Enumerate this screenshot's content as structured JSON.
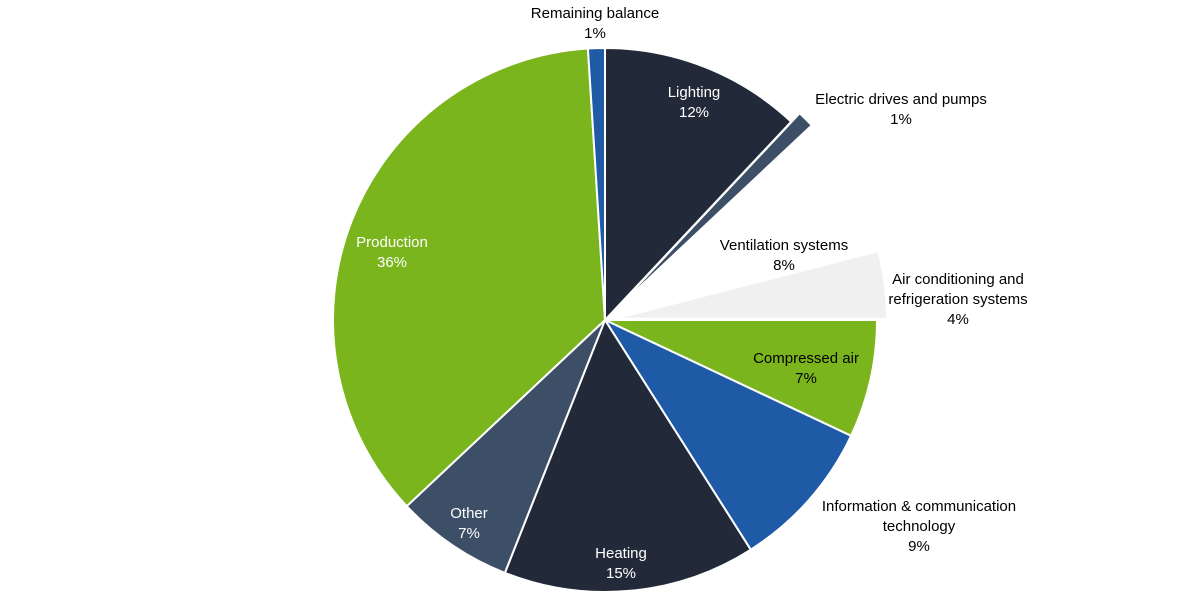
{
  "chart_data": {
    "type": "pie",
    "categories": [
      "Lighting",
      "Electric drives and pumps",
      "Ventilation systems",
      "Air conditioning and refrigeration systems",
      "Compressed air",
      "Information & communication technology",
      "Heating",
      "Other",
      "Production",
      "Remaining balance"
    ],
    "values": [
      12,
      1,
      8,
      4,
      7,
      9,
      15,
      7,
      36,
      1
    ],
    "value_labels": [
      "12%",
      "1%",
      "8%",
      "4%",
      "7%",
      "9%",
      "15%",
      "7%",
      "36%",
      "1%"
    ],
    "colors": [
      "#222a3a",
      "#3d4f66",
      "#ffffff",
      "#f0f0f0",
      "#7ab51d",
      "#1f5aa6",
      "#222a3a",
      "#3d4f66",
      "#7ab51d",
      "#1f5aa6"
    ]
  }
}
